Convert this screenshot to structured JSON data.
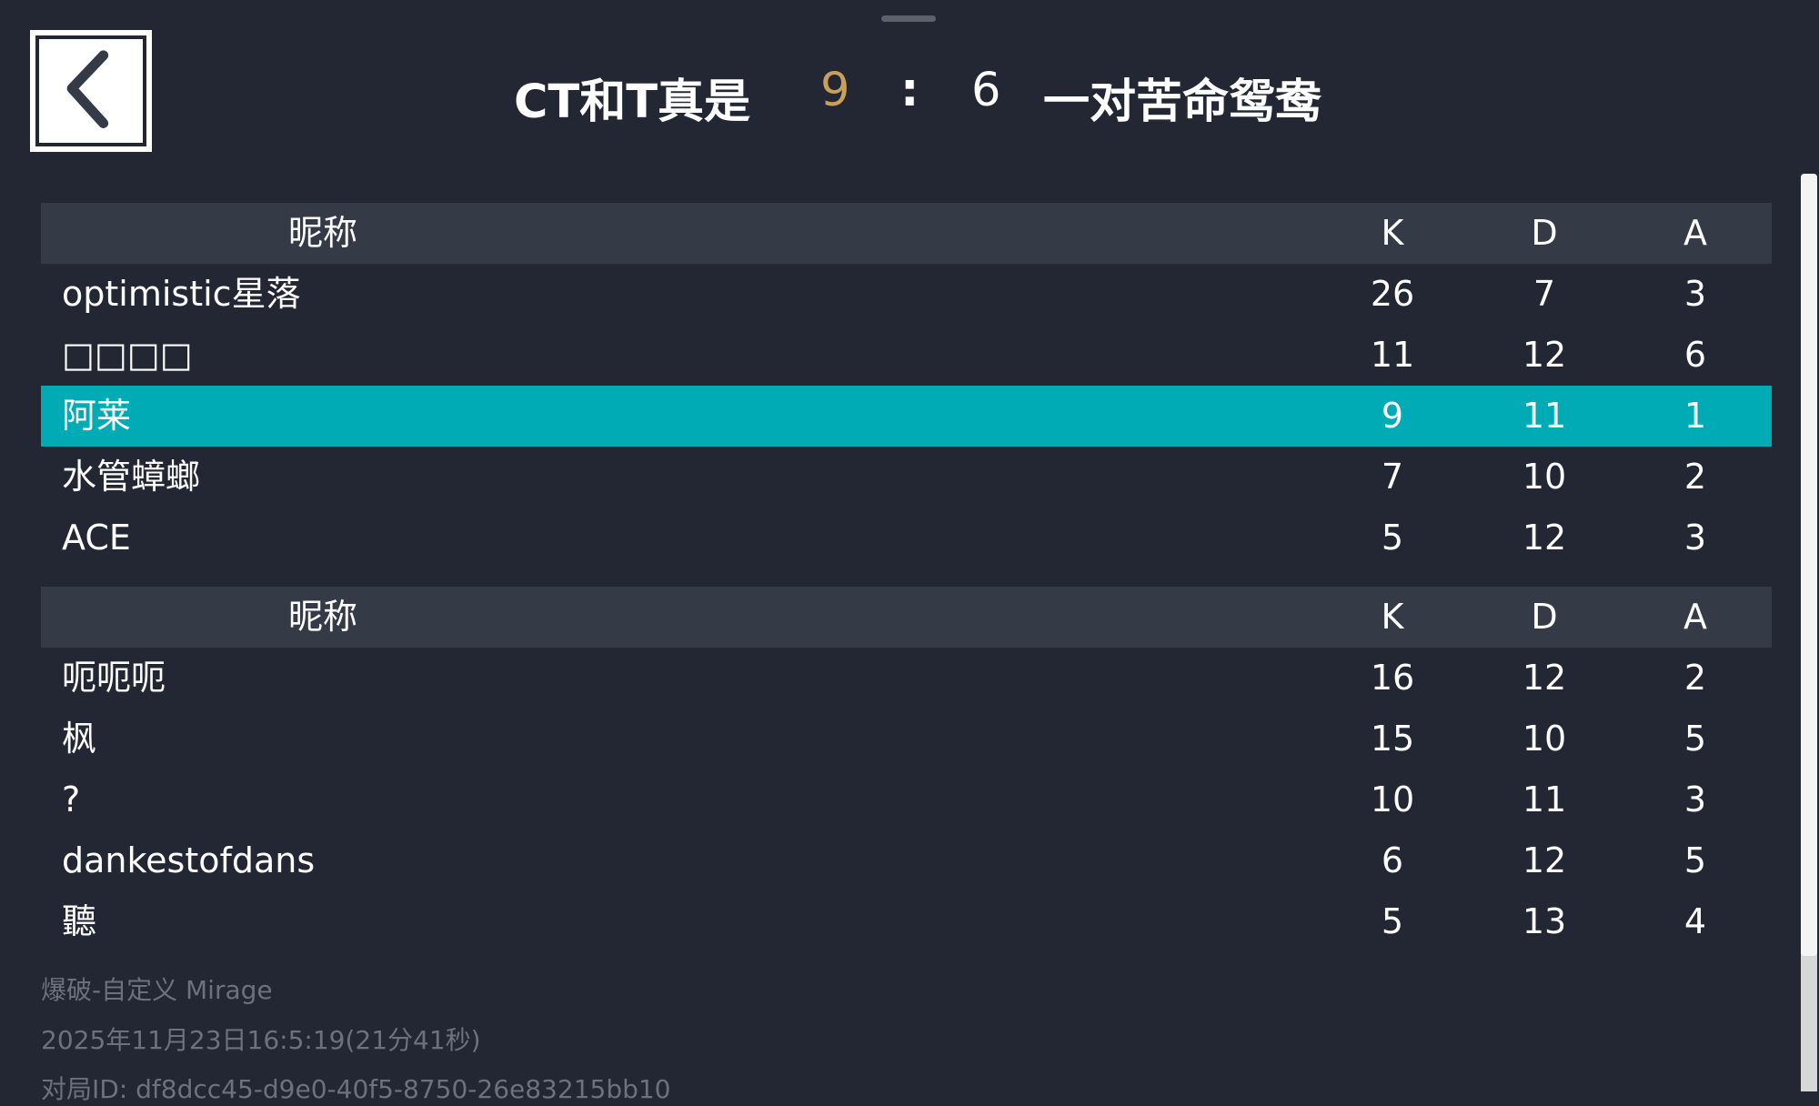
{
  "header": {
    "title_left": "CT和T真是",
    "score_ct": "9",
    "separator": ":",
    "score_t": "6",
    "title_right": "一对苦命鸳鸯"
  },
  "colors": {
    "background": "#222733",
    "header_row": "#343a46",
    "highlight": "#00abb5",
    "score_accent": "#c9a059"
  },
  "teams": [
    {
      "columns": {
        "name": "昵称",
        "k": "K",
        "d": "D",
        "a": "A"
      },
      "players": [
        {
          "name": "optimistic星落",
          "k": "26",
          "d": "7",
          "a": "3"
        },
        {
          "name": "□□□□",
          "k": "11",
          "d": "12",
          "a": "6"
        },
        {
          "name": "阿莱",
          "k": "9",
          "d": "11",
          "a": "1",
          "highlighted": true
        },
        {
          "name": "水管蟑螂",
          "k": "7",
          "d": "10",
          "a": "2"
        },
        {
          "name": "ACE",
          "k": "5",
          "d": "12",
          "a": "3"
        }
      ]
    },
    {
      "columns": {
        "name": "昵称",
        "k": "K",
        "d": "D",
        "a": "A"
      },
      "players": [
        {
          "name": "呃呃呃",
          "k": "16",
          "d": "12",
          "a": "2"
        },
        {
          "name": "枫",
          "k": "15",
          "d": "10",
          "a": "5"
        },
        {
          "name": "?",
          "k": "10",
          "d": "11",
          "a": "3"
        },
        {
          "name": "dankestofdans",
          "k": "6",
          "d": "12",
          "a": "5"
        },
        {
          "name": "聽",
          "k": "5",
          "d": "13",
          "a": "4"
        }
      ]
    }
  ],
  "footer": {
    "mode": "爆破-自定义 Mirage",
    "datetime": "2025年11月23日16:5:19(21分41秒)",
    "match_id": "对局ID: df8dcc45-d9e0-40f5-8750-26e83215bb10"
  }
}
